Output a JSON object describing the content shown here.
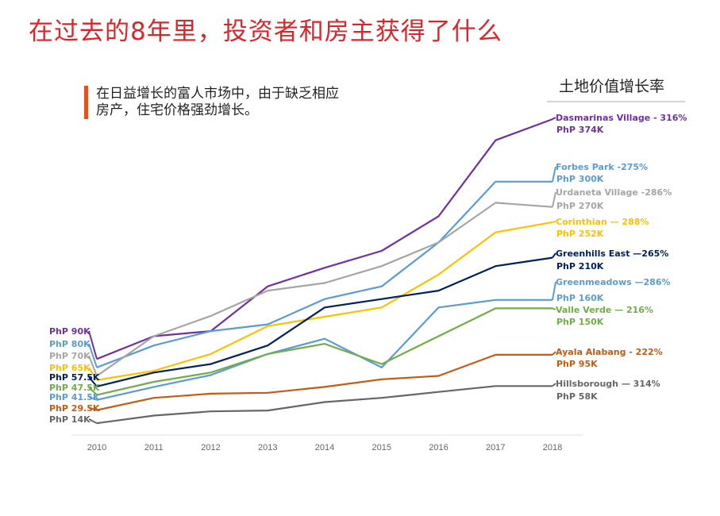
{
  "page": {
    "title": "在过去的8年里，投资者和房主获得了什么",
    "subtitle_line1": "在日益增长的富人市场中，由于缺乏相应",
    "subtitle_line2": "房产，住宅价格强劲增长。",
    "legend_title": "土地价值增长率",
    "colors": {
      "title": "#d9262b",
      "accent_bar": "#e5531a"
    }
  },
  "chart_data": {
    "type": "line",
    "title": "土地价值增长率",
    "xlabel": "",
    "ylabel": "",
    "units": "PhP thousands",
    "x": [
      "2010",
      "2011",
      "2012",
      "2013",
      "2014",
      "2015",
      "2016",
      "2017",
      "2018"
    ],
    "ylim": [
      0,
      390
    ],
    "grid": false,
    "legend_placement": "right",
    "series": [
      {
        "name": "Dasmarinas Village",
        "color": "#7030a0",
        "start_label": "PhP 90K",
        "end_label_line1": "Dasmarinas Village - 316%",
        "end_label_line2": "PhP 374K",
        "values": [
          90,
          117,
          123,
          176,
          198,
          218,
          259,
          349,
          374
        ]
      },
      {
        "name": "Forbes Park",
        "color": "#5b9bd5",
        "start_label": "PhP 80K",
        "end_label_line1": "Forbes Park -275%",
        "end_label_line2": "PhP 300K",
        "values": [
          80,
          106,
          123,
          131,
          161,
          176,
          228,
          300,
          300
        ]
      },
      {
        "name": "Urdaneta Village",
        "color": "#a5a5a5",
        "start_label": "PhP 70K",
        "end_label_line1": "Urdaneta Village -286%",
        "end_label_line2": "PhP 270K",
        "values": [
          70,
          117,
          141,
          171,
          180,
          200,
          228,
          275,
          270
        ]
      },
      {
        "name": "Corinthian",
        "color": "#ffc000",
        "start_label": "PhP 65K",
        "end_label_line1": "Corinthian — 288%",
        "end_label_line2": "PhP 252K",
        "values": [
          65,
          76,
          96,
          129,
          140,
          151,
          190,
          240,
          252
        ]
      },
      {
        "name": "Greenhills East",
        "color": "#002060",
        "start_label": "PhP 57.5K",
        "end_label_line1": "Greenhills East —265%",
        "end_label_line2": "PhP 210K",
        "values": [
          57.5,
          74,
          84,
          106,
          151,
          161,
          171,
          200,
          210
        ]
      },
      {
        "name": "Greenmeadows",
        "color": "#5b9bd5",
        "start_label": "PhP 41.5K",
        "end_label_line1": "Greenmeadows —286%",
        "end_label_line2": "PhP 160K",
        "values": [
          41.5,
          57,
          71,
          96,
          114,
          80,
          151,
          160,
          160
        ]
      },
      {
        "name": "Valle Verde",
        "color": "#70ad47",
        "start_label": "PhP 47.5K",
        "end_label_line1": "Valle Verde — 216%",
        "end_label_line2": "PhP 150K",
        "values": [
          47.5,
          63,
          74,
          96,
          108,
          84,
          117,
          150,
          150
        ]
      },
      {
        "name": "Ayala Alabang",
        "color": "#c55a11",
        "start_label": "PhP 29.5K",
        "end_label_line1": "Ayala Alabang - 222%",
        "end_label_line2": "PhP 95K",
        "values": [
          29.5,
          44,
          49,
          50,
          57,
          66,
          70,
          95,
          95
        ]
      },
      {
        "name": "Hillsborough",
        "color": "#666666",
        "start_label": "PhP 14K",
        "end_label_line1": "Hillsborough — 314%",
        "end_label_line2": "PhP 58K",
        "values": [
          14,
          23,
          28,
          29,
          39,
          44,
          51,
          58,
          58
        ]
      }
    ]
  }
}
